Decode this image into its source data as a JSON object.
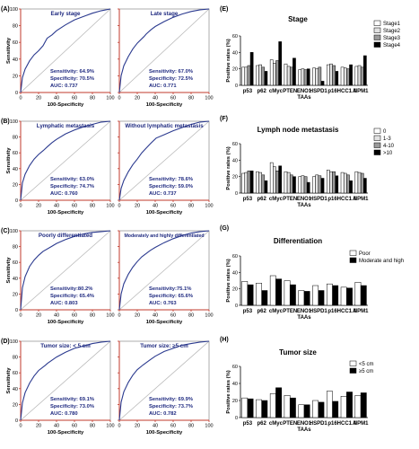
{
  "colors": {
    "roc": "#2b3a8f",
    "diag": "#b8b8b8",
    "axis_red": "#c0392b",
    "text_blue": "#1f2a80"
  },
  "roc_panels": [
    {
      "letter": "(A)",
      "left": {
        "title": "Early stage",
        "sens": "Sensitivity: 64.9%",
        "spec": "Specificity: 70.5%",
        "auc": "AUC: 0.737"
      },
      "right": {
        "title": "Late stage",
        "sens": "Sensitivity: 67.0%",
        "spec": "Specificity: 72.5%",
        "auc": "AUC: 0.771"
      }
    },
    {
      "letter": "(B)",
      "left": {
        "title": "Lymphatic metastasis",
        "sens": "Sensitivity: 63.0%",
        "spec": "Specificity: 74.7%",
        "auc": "AUC: 0.760"
      },
      "right": {
        "title": "Without lymphatic metastasis",
        "sens": "Sensitivity: 78.6%",
        "spec": "Specificity: 59.0%",
        "auc": "AUC: 0.737"
      }
    },
    {
      "letter": "(C)",
      "left": {
        "title": "Poorly differentiated",
        "sens": "Sensitivity:80.2%",
        "spec": "Specificity: 65.4%",
        "auc": "AUC: 0.803"
      },
      "right": {
        "title": "Moderately and highly differentiated",
        "sens": "Sensitivity:75.1%",
        "spec": "Specificity: 65.6%",
        "auc": "AUC: 0.763"
      }
    },
    {
      "letter": "(D)",
      "left": {
        "title": "Tumor size: < 5 cm",
        "sens": "Sensitivity: 69.1%",
        "spec": "Specificity: 73.0%",
        "auc": "AUC: 0.780"
      },
      "right": {
        "title": "Tumor size: ≥5 cm",
        "sens": "Sensitivity: 69.9%",
        "spec": "Specificity: 73.7%",
        "auc": "AUC: 0.782"
      }
    }
  ],
  "roc_axis": {
    "ylabel": "Sensitivity",
    "xlabel": "100-Specificity",
    "ticks": [
      "0",
      "20",
      "40",
      "60",
      "80",
      "100"
    ]
  },
  "bar_axis": {
    "ylabel": "Positive rates (%)",
    "xlabel": "TAAs",
    "y_ticks": [
      "0",
      "20",
      "40",
      "60"
    ]
  },
  "chart_data": [
    {
      "type": "line",
      "panel": "(A)",
      "title": "Early stage",
      "xlabel": "100-Specificity",
      "ylabel": "Sensitivity",
      "xlim": [
        0,
        100
      ],
      "ylim": [
        0,
        100
      ],
      "series": [
        {
          "x": [
            0,
            2,
            5,
            10,
            15,
            20,
            25,
            29.5,
            35,
            40,
            50,
            60,
            70,
            80,
            90,
            100
          ],
          "y": [
            0,
            18,
            28,
            38,
            45,
            50,
            56,
            64.9,
            69,
            74,
            81,
            87,
            91,
            95,
            98,
            100
          ]
        }
      ]
    },
    {
      "type": "line",
      "panel": "(A)",
      "title": "Late stage",
      "xlabel": "100-Specificity",
      "ylabel": "Sensitivity",
      "xlim": [
        0,
        100
      ],
      "ylim": [
        0,
        100
      ],
      "series": [
        {
          "x": [
            0,
            2,
            5,
            10,
            15,
            20,
            27.5,
            30,
            35,
            40,
            50,
            60,
            70,
            80,
            90,
            100
          ],
          "y": [
            0,
            20,
            32,
            43,
            52,
            59,
            67,
            70,
            75,
            79,
            85,
            90,
            94,
            97,
            99,
            100
          ]
        }
      ]
    },
    {
      "type": "line",
      "panel": "(B)",
      "title": "Lymphatic metastasis",
      "xlabel": "100-Specificity",
      "ylabel": "Sensitivity",
      "xlim": [
        0,
        100
      ],
      "ylim": [
        0,
        100
      ],
      "series": [
        {
          "x": [
            0,
            2,
            5,
            10,
            15,
            20,
            25.3,
            30,
            35,
            40,
            50,
            60,
            70,
            80,
            90,
            100
          ],
          "y": [
            0,
            22,
            33,
            44,
            52,
            58,
            63,
            68,
            73,
            77,
            84,
            89,
            93,
            96,
            99,
            100
          ]
        }
      ]
    },
    {
      "type": "line",
      "panel": "(B)",
      "title": "Without lymphatic metastasis",
      "xlabel": "100-Specificity",
      "ylabel": "Sensitivity",
      "xlim": [
        0,
        100
      ],
      "ylim": [
        0,
        100
      ],
      "series": [
        {
          "x": [
            0,
            2,
            5,
            10,
            15,
            20,
            25,
            30,
            35,
            41,
            50,
            60,
            70,
            80,
            90,
            100
          ],
          "y": [
            0,
            15,
            25,
            36,
            45,
            52,
            60,
            66,
            72,
            78.6,
            83,
            88,
            92,
            96,
            99,
            100
          ]
        }
      ]
    },
    {
      "type": "line",
      "panel": "(C)",
      "title": "Poorly differentiated",
      "xlabel": "100-Specificity",
      "ylabel": "Sensitivity",
      "xlim": [
        0,
        100
      ],
      "ylim": [
        0,
        100
      ],
      "series": [
        {
          "x": [
            0,
            2,
            5,
            10,
            15,
            20,
            25,
            34.6,
            40,
            50,
            60,
            70,
            80,
            90,
            100
          ],
          "y": [
            0,
            28,
            42,
            55,
            63,
            69,
            74,
            80.2,
            84,
            89,
            93,
            96,
            98,
            99,
            100
          ]
        }
      ]
    },
    {
      "type": "line",
      "panel": "(C)",
      "title": "Moderately and highly differentiated",
      "xlabel": "100-Specificity",
      "ylabel": "Sensitivity",
      "xlim": [
        0,
        100
      ],
      "ylim": [
        0,
        100
      ],
      "series": [
        {
          "x": [
            0,
            2,
            5,
            10,
            15,
            20,
            25,
            34.4,
            40,
            50,
            60,
            70,
            80,
            90,
            100
          ],
          "y": [
            0,
            20,
            33,
            45,
            54,
            61,
            67,
            75.1,
            79,
            85,
            90,
            94,
            97,
            99,
            100
          ]
        }
      ]
    },
    {
      "type": "line",
      "panel": "(D)",
      "title": "Tumor size: < 5 cm",
      "xlabel": "100-Specificity",
      "ylabel": "Sensitivity",
      "xlim": [
        0,
        100
      ],
      "ylim": [
        0,
        100
      ],
      "series": [
        {
          "x": [
            0,
            2,
            5,
            10,
            15,
            20,
            27,
            30,
            35,
            40,
            50,
            60,
            70,
            80,
            90,
            100
          ],
          "y": [
            0,
            22,
            35,
            47,
            56,
            63,
            69.1,
            72,
            76,
            80,
            86,
            91,
            94,
            97,
            99,
            100
          ]
        }
      ]
    },
    {
      "type": "line",
      "panel": "(D)",
      "title": "Tumor size: ≥5 cm",
      "xlabel": "100-Specificity",
      "ylabel": "Sensitivity",
      "xlim": [
        0,
        100
      ],
      "ylim": [
        0,
        100
      ],
      "series": [
        {
          "x": [
            0,
            2,
            5,
            10,
            15,
            20,
            26.3,
            30,
            35,
            40,
            50,
            60,
            70,
            80,
            90,
            100
          ],
          "y": [
            0,
            23,
            36,
            48,
            57,
            64,
            69.9,
            73,
            77,
            81,
            87,
            91,
            95,
            97,
            99,
            100
          ]
        }
      ]
    },
    {
      "type": "bar",
      "panel": "(E)",
      "title": "Stage",
      "xlabel": "TAAs",
      "ylabel": "Positive rates (%)",
      "ylim": [
        0,
        60
      ],
      "legend": "right",
      "categories": [
        "p53",
        "p62",
        "cMyc",
        "PTEN",
        "ENO1",
        "HSPD1",
        "p16",
        "HCC1.4",
        "NPM1"
      ],
      "series": [
        {
          "name": "Stage1",
          "color": "#ffffff",
          "values": [
            22,
            24,
            31,
            26,
            19,
            21,
            25,
            22,
            23
          ]
        },
        {
          "name": "Stage2",
          "color": "#e2e2e2",
          "values": [
            22,
            25,
            27,
            23,
            20,
            20,
            26,
            21,
            24
          ]
        },
        {
          "name": "Stage3",
          "color": "#9a9a9a",
          "values": [
            24,
            22,
            30,
            22,
            19,
            22,
            24,
            20,
            22
          ]
        },
        {
          "name": "Stage4",
          "color": "#000000",
          "values": [
            40,
            17,
            53,
            33,
            20,
            5,
            17,
            25,
            36
          ]
        }
      ]
    },
    {
      "type": "bar",
      "panel": "(F)",
      "title": "Lymph node metastasis",
      "xlabel": "TAAs",
      "ylabel": "Positive rates (%)",
      "ylim": [
        0,
        60
      ],
      "legend": "right",
      "categories": [
        "p53",
        "p62",
        "cMyc",
        "PTEN",
        "ENO1",
        "HSPD1",
        "p16",
        "HCC1.4",
        "NPM1"
      ],
      "series": [
        {
          "name": "0",
          "color": "#ffffff",
          "values": [
            24,
            26,
            37,
            26,
            20,
            20,
            28,
            25,
            26
          ]
        },
        {
          "name": "1-3",
          "color": "#e2e2e2",
          "values": [
            25,
            25,
            32,
            25,
            21,
            22,
            26,
            24,
            25
          ]
        },
        {
          "name": "4-10",
          "color": "#9a9a9a",
          "values": [
            27,
            22,
            27,
            22,
            20,
            21,
            26,
            22,
            24
          ]
        },
        {
          "name": ">10",
          "color": "#000000",
          "values": [
            27,
            15,
            33,
            20,
            13,
            18,
            21,
            15,
            18
          ]
        }
      ]
    },
    {
      "type": "bar",
      "panel": "(G)",
      "title": "Differentiation",
      "xlabel": "TAAs",
      "ylabel": "Positive rates (%)",
      "ylim": [
        0,
        60
      ],
      "legend": "right",
      "categories": [
        "p53",
        "p62",
        "cMyc",
        "PTEN",
        "ENO1",
        "HSPD1",
        "p16",
        "HCC1.4",
        "NPM1"
      ],
      "series": [
        {
          "name": "Poor",
          "color": "#ffffff",
          "values": [
            29,
            27,
            36,
            30,
            18,
            24,
            26,
            22,
            28
          ]
        },
        {
          "name": "Moderate and high",
          "color": "#000000",
          "values": [
            25,
            18,
            32,
            25,
            17,
            18,
            24,
            21,
            24
          ]
        }
      ]
    },
    {
      "type": "bar",
      "panel": "(H)",
      "title": "Tumor size",
      "xlabel": "TAAs",
      "ylabel": "Positive rates (%)",
      "ylim": [
        0,
        60
      ],
      "legend": "right",
      "categories": [
        "p53",
        "p62",
        "cMyc",
        "PTEN",
        "ENO1",
        "HSPD1",
        "p16",
        "HCC1.4",
        "NPM1"
      ],
      "series": [
        {
          "name": "<5 cm",
          "color": "#ffffff",
          "values": [
            23,
            21,
            28,
            26,
            15,
            20,
            31,
            25,
            26
          ]
        },
        {
          "name": "≥5 cm",
          "color": "#000000",
          "values": [
            22,
            20,
            35,
            23,
            15,
            18,
            19,
            30,
            29
          ]
        }
      ]
    }
  ]
}
